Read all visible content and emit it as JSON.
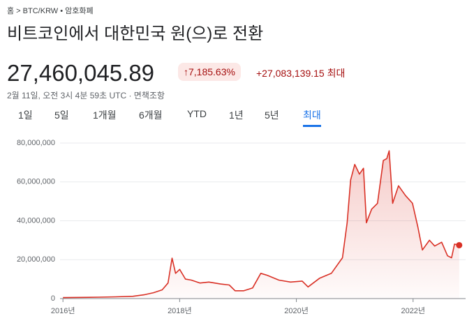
{
  "header": {
    "breadcrumb": [
      "홈",
      "BTC/KRW • 암호화폐"
    ],
    "title": "비트코인에서 대한민국 원(으)로 전환"
  },
  "quote": {
    "price": "27,460,045.89",
    "change_percent": "7,185.63%",
    "change": "+27,083,139.15",
    "period": "최대",
    "timestamp": "2월 11일, 오전 3시 4분 59초 UTC · ",
    "disclaimer": "면책조항"
  },
  "tabs": {
    "items": [
      "1일",
      "5일",
      "1개월",
      "6개월",
      "YTD",
      "1년",
      "5년",
      "최대"
    ],
    "selected": 7
  },
  "chart_data": {
    "type": "line",
    "color": "#d93025",
    "grid": true,
    "x": [
      2016.0,
      2016.3,
      2016.6,
      2016.9,
      2017.2,
      2017.4,
      2017.55,
      2017.7,
      2017.8,
      2017.87,
      2017.93,
      2018.0,
      2018.1,
      2018.2,
      2018.35,
      2018.5,
      2018.7,
      2018.85,
      2018.95,
      2019.1,
      2019.25,
      2019.39,
      2019.5,
      2019.7,
      2019.9,
      2020.1,
      2020.2,
      2020.4,
      2020.6,
      2020.79,
      2020.87,
      2020.93,
      2021.0,
      2021.08,
      2021.15,
      2021.2,
      2021.29,
      2021.39,
      2021.49,
      2021.55,
      2021.59,
      2021.65,
      2021.75,
      2021.87,
      2021.99,
      2022.08,
      2022.16,
      2022.28,
      2022.37,
      2022.49,
      2022.59,
      2022.66,
      2022.71,
      2022.79
    ],
    "values": [
      500000,
      600000,
      700000,
      900000,
      1200000,
      2000000,
      3000000,
      4500000,
      8000000,
      20800000,
      13000000,
      15000000,
      10000000,
      9500000,
      8000000,
      8500000,
      7500000,
      7000000,
      4000000,
      4000000,
      5500000,
      13000000,
      12000000,
      9500000,
      8500000,
      9000000,
      6000000,
      10500000,
      13000000,
      21000000,
      39000000,
      61000000,
      69000000,
      64000000,
      67000000,
      39000000,
      46000000,
      49000000,
      71000000,
      72000000,
      76000000,
      49000000,
      58000000,
      53000000,
      49000000,
      37000000,
      25000000,
      30000000,
      27000000,
      29000000,
      22000000,
      21000000,
      28000000,
      27460045.89
    ],
    "xlim": [
      2015.95,
      2022.9
    ],
    "xticks": [
      {
        "value": 2016,
        "label": "2016년"
      },
      {
        "value": 2018,
        "label": "2018년"
      },
      {
        "value": 2020,
        "label": "2020년"
      },
      {
        "value": 2022,
        "label": "2022년"
      }
    ],
    "ylim": [
      0,
      80000000
    ],
    "yticks": [
      0,
      {
        "value": 20000000,
        "label": "20,000,000"
      },
      {
        "value": 40000000,
        "label": "40,000,000"
      },
      {
        "value": 60000000,
        "label": "60,000,000"
      },
      {
        "value": 80000000,
        "label": "80,000,000"
      }
    ]
  }
}
